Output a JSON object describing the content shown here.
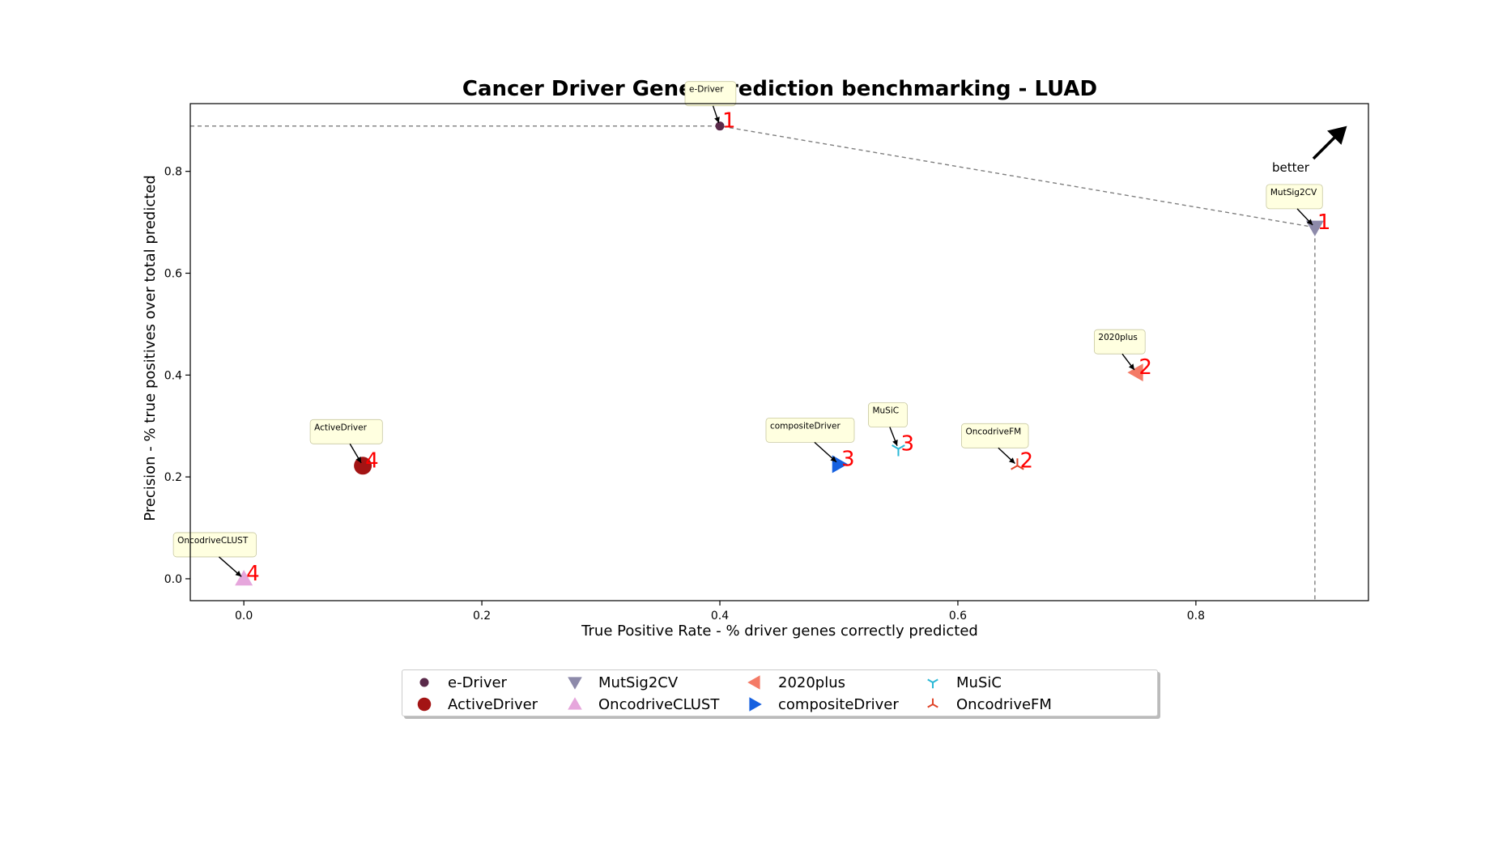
{
  "chart_data": {
    "type": "scatter",
    "title": "Cancer Driver Genes prediction benchmarking - LUAD",
    "xlabel": "True Positive Rate - % driver genes correctly predicted",
    "ylabel": "Precision - % true positives over total predicted",
    "xlim": [
      -0.045,
      0.945
    ],
    "ylim": [
      -0.043,
      0.933
    ],
    "xticks": [
      0.0,
      0.2,
      0.4,
      0.6,
      0.8
    ],
    "yticks": [
      0.0,
      0.2,
      0.4,
      0.6,
      0.8
    ],
    "xtick_labels": [
      "0.0",
      "0.2",
      "0.4",
      "0.6",
      "0.8"
    ],
    "ytick_labels": [
      "0.0",
      "0.2",
      "0.4",
      "0.6",
      "0.8"
    ],
    "grid": false,
    "legend_position": "bottom-center",
    "better_label": "better",
    "pareto_front": [
      [
        0.0,
        0.889
      ],
      [
        0.4,
        0.889
      ],
      [
        0.9,
        0.69
      ],
      [
        0.9,
        -0.043
      ]
    ],
    "points": [
      {
        "name": "e-Driver",
        "x": 0.4,
        "y": 0.889,
        "rank": "1",
        "marker": "circle-small",
        "color": "#5a2a4a",
        "callout": "e-Driver"
      },
      {
        "name": "ActiveDriver",
        "x": 0.1,
        "y": 0.222,
        "rank": "4",
        "marker": "circle-large",
        "color": "#a31414",
        "callout": "ActiveDriver"
      },
      {
        "name": "MutSig2CV",
        "x": 0.9,
        "y": 0.69,
        "rank": "1",
        "marker": "triangle-down",
        "color": "#8d8aaa",
        "callout": "MutSig2CV"
      },
      {
        "name": "OncodriveCLUST",
        "x": 0.0,
        "y": 0.0,
        "rank": "4",
        "marker": "triangle-up",
        "color": "#e6a6dc",
        "callout": "OncodriveCLUST"
      },
      {
        "name": "2020plus",
        "x": 0.75,
        "y": 0.405,
        "rank": "2",
        "marker": "triangle-left",
        "color": "#f47a66",
        "callout": "2020plus"
      },
      {
        "name": "compositeDriver",
        "x": 0.5,
        "y": 0.225,
        "rank": "3",
        "marker": "triangle-right",
        "color": "#1560e0",
        "callout": "compositeDriver"
      },
      {
        "name": "MuSiC",
        "x": 0.55,
        "y": 0.255,
        "rank": "3",
        "marker": "tri-down",
        "color": "#2ab8d6",
        "callout": "MuSiC"
      },
      {
        "name": "OncodriveFM",
        "x": 0.65,
        "y": 0.222,
        "rank": "2",
        "marker": "tri-up",
        "color": "#e0452a",
        "callout": "OncodriveFM"
      }
    ]
  },
  "legend": [
    {
      "label": "e-Driver",
      "marker": "circle-small",
      "color": "#5a2a4a"
    },
    {
      "label": "ActiveDriver",
      "marker": "circle-large",
      "color": "#a31414"
    },
    {
      "label": "MutSig2CV",
      "marker": "triangle-down",
      "color": "#8d8aaa"
    },
    {
      "label": "OncodriveCLUST",
      "marker": "triangle-up",
      "color": "#e6a6dc"
    },
    {
      "label": "2020plus",
      "marker": "triangle-left",
      "color": "#f47a66"
    },
    {
      "label": "compositeDriver",
      "marker": "triangle-right",
      "color": "#1560e0"
    },
    {
      "label": "MuSiC",
      "marker": "tri-down",
      "color": "#2ab8d6"
    },
    {
      "label": "OncodriveFM",
      "marker": "tri-up",
      "color": "#e0452a"
    }
  ]
}
